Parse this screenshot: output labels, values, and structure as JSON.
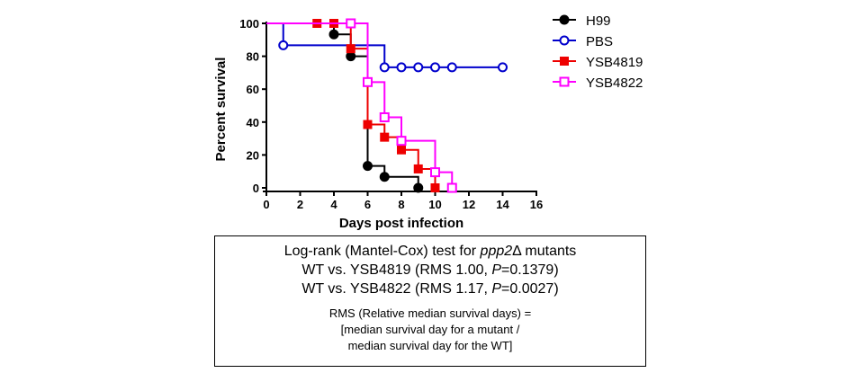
{
  "chart_data": {
    "type": "line",
    "step": true,
    "title": "",
    "xlabel": "Days post infection",
    "ylabel": "Percent survival",
    "xlim": [
      0,
      16
    ],
    "ylim": [
      0,
      100
    ],
    "xticks": [
      0,
      2,
      4,
      6,
      8,
      10,
      12,
      14,
      16
    ],
    "yticks": [
      0,
      20,
      40,
      60,
      80,
      100
    ],
    "grid": false,
    "legend_position": "top-right",
    "series": [
      {
        "name": "H99",
        "color": "#000000",
        "marker": "filled-circle",
        "steps": [
          [
            0,
            100
          ],
          [
            4,
            93.3
          ],
          [
            5,
            80
          ],
          [
            6,
            13.3
          ],
          [
            7,
            6.7
          ],
          [
            9,
            0
          ]
        ],
        "markers": [
          [
            4,
            93.3
          ],
          [
            5,
            80
          ],
          [
            6,
            13.3
          ],
          [
            7,
            6.7
          ],
          [
            9,
            0
          ]
        ]
      },
      {
        "name": "PBS",
        "color": "#0000cc",
        "marker": "open-circle",
        "steps": [
          [
            0,
            100
          ],
          [
            1,
            86.7
          ],
          [
            7,
            73.3
          ]
        ],
        "end_x": 14,
        "markers": [
          [
            1,
            86.7
          ],
          [
            7,
            73.3
          ],
          [
            8,
            73.3
          ],
          [
            9,
            73.3
          ],
          [
            10,
            73.3
          ],
          [
            11,
            73.3
          ],
          [
            14,
            73.3
          ]
        ]
      },
      {
        "name": "YSB4819",
        "color": "#ee0000",
        "marker": "filled-square",
        "steps": [
          [
            0,
            100
          ],
          [
            5,
            84.6
          ],
          [
            6,
            38.5
          ],
          [
            7,
            30.8
          ],
          [
            8,
            23.1
          ],
          [
            9,
            11.5
          ],
          [
            10,
            0
          ]
        ],
        "markers": [
          [
            3,
            100
          ],
          [
            4,
            100
          ],
          [
            5,
            84.6
          ],
          [
            6,
            38.5
          ],
          [
            7,
            30.8
          ],
          [
            8,
            23.1
          ],
          [
            9,
            11.5
          ],
          [
            10,
            0
          ]
        ]
      },
      {
        "name": "YSB4822",
        "color": "#ff00ff",
        "marker": "open-square",
        "steps": [
          [
            0,
            100
          ],
          [
            6,
            64.3
          ],
          [
            7,
            42.9
          ],
          [
            8,
            28.6
          ],
          [
            10,
            9.5
          ],
          [
            11,
            0
          ]
        ],
        "markers": [
          [
            5,
            100
          ],
          [
            6,
            64.3
          ],
          [
            7,
            42.9
          ],
          [
            8,
            28.6
          ],
          [
            10,
            9.5
          ],
          [
            11,
            0
          ]
        ]
      }
    ]
  },
  "stats": {
    "heading_pre": "Log-rank (Mantel-Cox) test for ",
    "heading_gene": "ppp2",
    "heading_post": "Δ mutants",
    "comparisons": [
      {
        "pre": "WT vs. YSB4819 (RMS 1.00, ",
        "p_label": "P",
        "post": "=0.1379)"
      },
      {
        "pre": "WT vs. YSB4822 (RMS 1.17, ",
        "p_label": "P",
        "post": "=0.0027)"
      }
    ],
    "definition": [
      "RMS (Relative median survival days) =",
      "[median survival day for a mutant  /",
      "median survival day for the WT]"
    ]
  }
}
